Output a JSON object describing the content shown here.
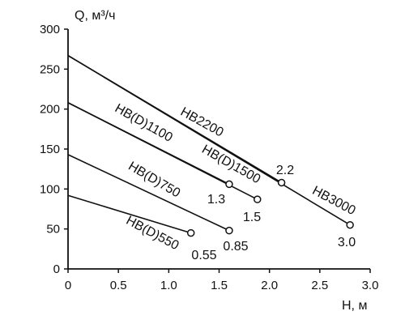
{
  "chart_data": {
    "type": "line",
    "xlabel": "H, м",
    "ylabel": "Q, м³/ч",
    "xlim": [
      0,
      3.0
    ],
    "ylim": [
      0,
      300
    ],
    "x_ticks": [
      "0",
      "0.5",
      "1.0",
      "1.5",
      "2.0",
      "2.5",
      "3.0"
    ],
    "y_ticks": [
      "0",
      "50",
      "100",
      "150",
      "200",
      "250",
      "300"
    ],
    "grid": false,
    "series": [
      {
        "name": "HB(D)550",
        "points": [
          {
            "x": 0,
            "y": 92
          },
          {
            "x": 1.22,
            "y": 45
          }
        ],
        "point_label": "0.55"
      },
      {
        "name": "HB(D)750",
        "points": [
          {
            "x": 0,
            "y": 143
          },
          {
            "x": 1.6,
            "y": 48
          }
        ],
        "point_label": "0.85"
      },
      {
        "name": "HB(D)1100",
        "points": [
          {
            "x": 0,
            "y": 208
          },
          {
            "x": 1.6,
            "y": 106
          }
        ],
        "point_label": "1.3"
      },
      {
        "name": "HB(D)1500",
        "points": [
          {
            "x": 0,
            "y": 208
          },
          {
            "x": 1.88,
            "y": 87
          }
        ],
        "point_label": "1.5"
      },
      {
        "name": "HB2200",
        "points": [
          {
            "x": 0,
            "y": 267
          },
          {
            "x": 2.12,
            "y": 108
          }
        ],
        "point_label": "2.2"
      },
      {
        "name": "HB3000",
        "points": [
          {
            "x": 0,
            "y": 267
          },
          {
            "x": 2.8,
            "y": 55
          }
        ],
        "point_label": "3.0"
      }
    ]
  }
}
